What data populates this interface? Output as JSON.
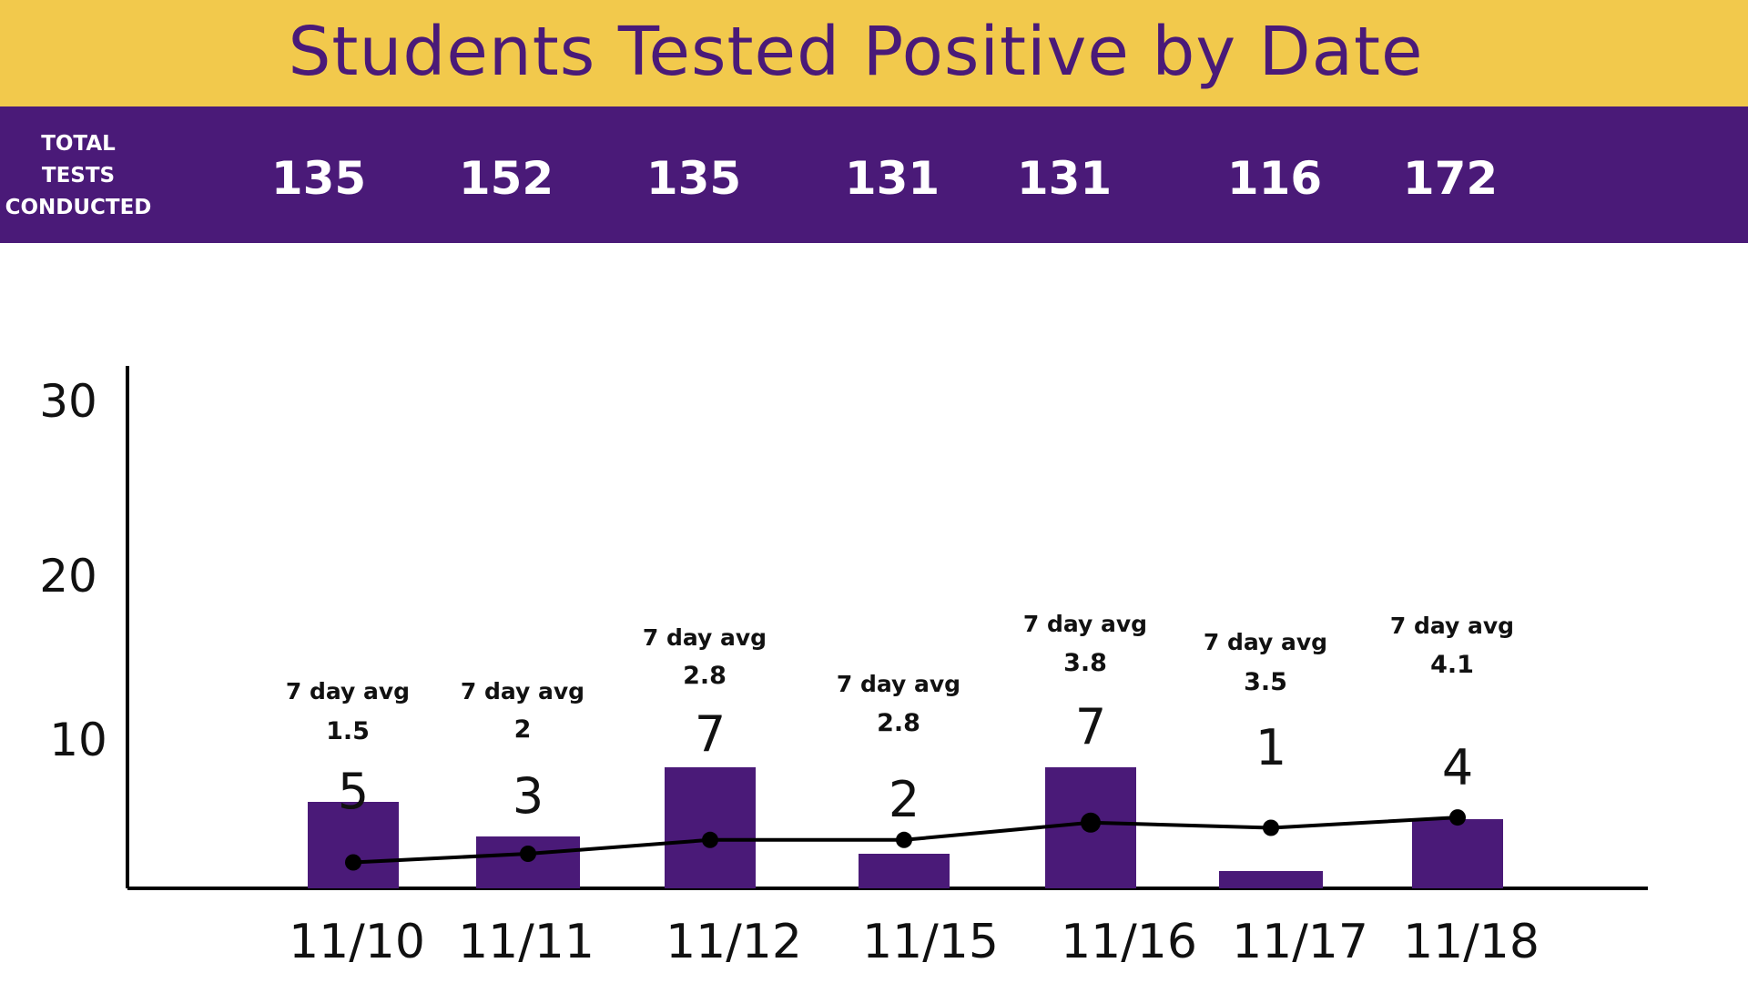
{
  "title": "Students Tested Positive by Date",
  "totals": {
    "label": "TOTAL TESTS CONDUCTED",
    "label_lines": [
      "TOTAL",
      "TESTS",
      "CONDUCTED"
    ],
    "values": [
      "135",
      "152",
      "135",
      "131",
      "131",
      "116",
      "172"
    ]
  },
  "colors": {
    "banner": "#f2c94c",
    "brand_purple": "#4a1a78",
    "bar": "#4a1a78",
    "line": "#000000"
  },
  "chart_data": {
    "type": "bar",
    "title": "Students Tested Positive by Date",
    "categories": [
      "11/10",
      "11/11",
      "11/12",
      "11/15",
      "11/16",
      "11/17",
      "11/18"
    ],
    "series": [
      {
        "name": "",
        "type": "bar",
        "values": [
          5,
          3,
          7,
          2,
          7,
          1,
          4
        ]
      },
      {
        "name": "7 day avg",
        "type": "line",
        "values": [
          1.5,
          2,
          2.8,
          2.8,
          3.8,
          3.5,
          4.1
        ]
      }
    ],
    "bar_labels": [
      "5",
      "3",
      "7",
      "2",
      "7",
      "1",
      "4"
    ],
    "avg_label": "7 day avg",
    "avg_labels": [
      "1.5",
      "2",
      "2.8",
      "2.8",
      "3.8",
      "3.5",
      "4.1"
    ],
    "yticks": [
      "10",
      "20",
      "30"
    ],
    "ylim": [
      0,
      30
    ],
    "grid": false,
    "legend": "none"
  }
}
